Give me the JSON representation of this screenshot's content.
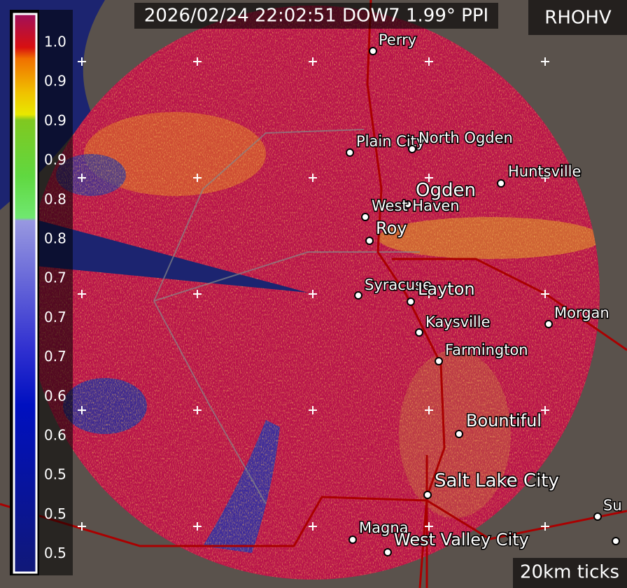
{
  "header": {
    "title": "2026/02/24 22:02:51 DOW7 1.99° PPI",
    "field": "RHOHV"
  },
  "colorbar": {
    "labels": [
      "1.0",
      "0.9",
      "0.9",
      "0.9",
      "0.8",
      "0.8",
      "0.7",
      "0.7",
      "0.7",
      "0.6",
      "0.6",
      "0.5",
      "0.5",
      "0.5"
    ]
  },
  "cities": [
    {
      "label": "Perry"
    },
    {
      "label": "Plain City"
    },
    {
      "label": "North Ogden"
    },
    {
      "label": "Huntsville"
    },
    {
      "label": "Ogden"
    },
    {
      "label": "West Haven"
    },
    {
      "label": "Roy"
    },
    {
      "label": "Syracuse"
    },
    {
      "label": "Layton"
    },
    {
      "label": "Morgan"
    },
    {
      "label": "Kaysville"
    },
    {
      "label": "Farmington"
    },
    {
      "label": "Bountiful"
    },
    {
      "label": "Salt Lake City"
    },
    {
      "label": "Magna"
    },
    {
      "label": "West Valley City"
    },
    {
      "label": "Su"
    }
  ],
  "footer": {
    "scale_note": "20km ticks"
  }
}
